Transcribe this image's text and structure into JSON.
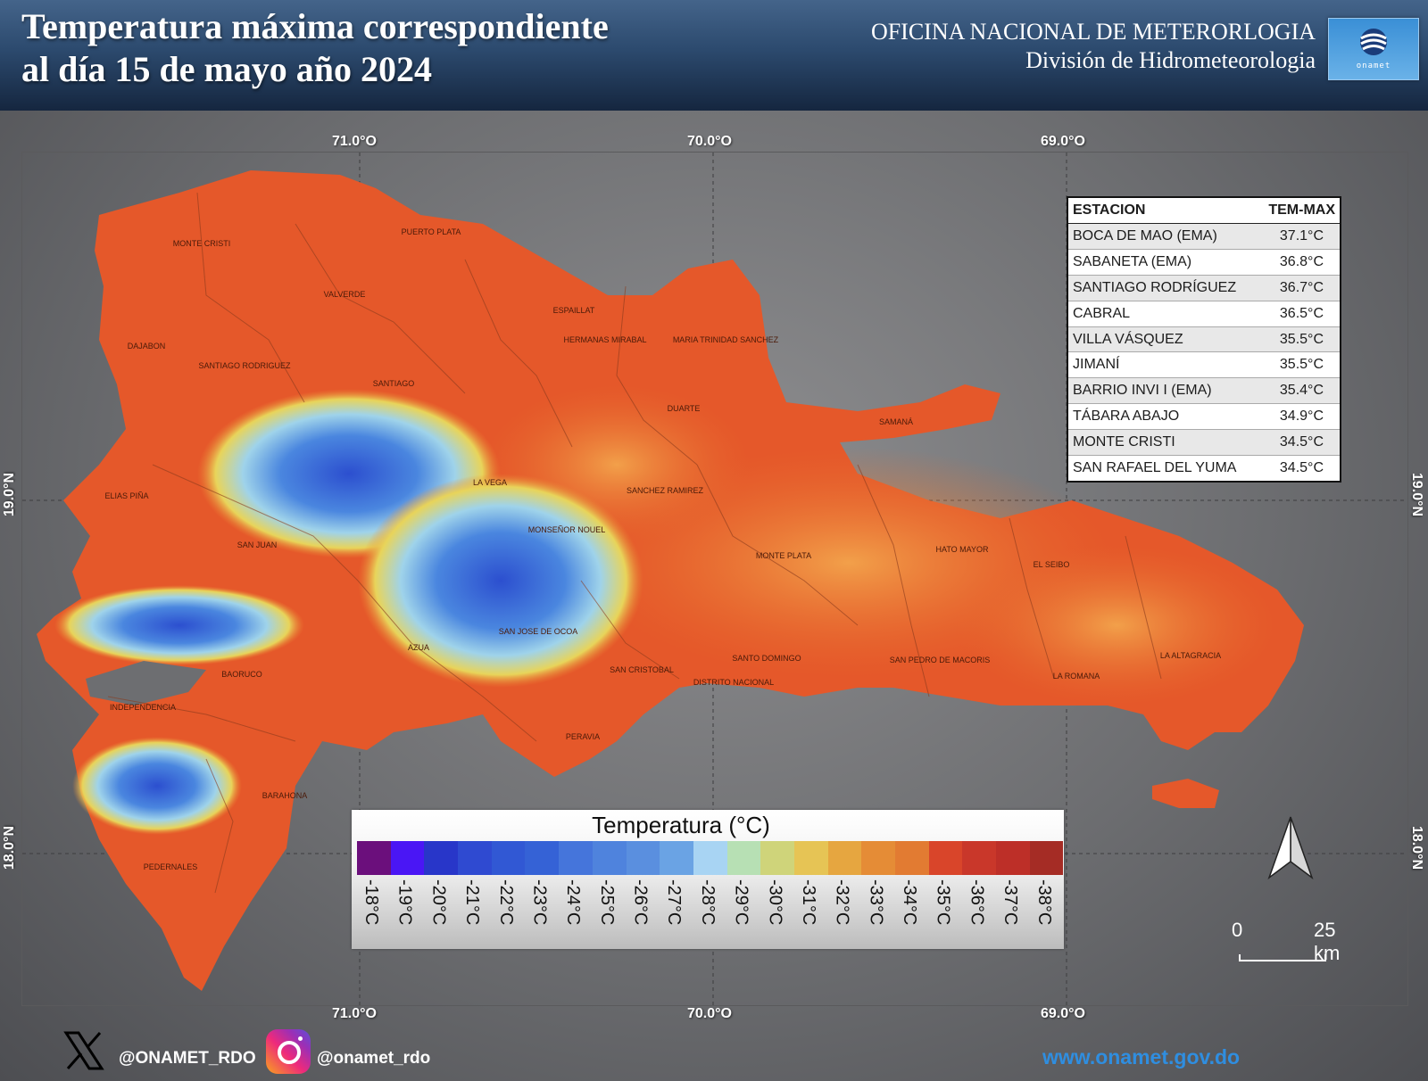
{
  "header": {
    "title_line1": "Temperatura máxima correspondiente",
    "title_line2": "al día 15 de mayo  año 2024",
    "org_line1": "OFICINA NACIONAL DE METERORLOGIA",
    "org_line2": "División de Hidrometeorologia",
    "logo_text": "onamet"
  },
  "map": {
    "longitude_labels": [
      "71.0°O",
      "70.0°O",
      "69.0°O"
    ],
    "latitude_labels": [
      "19.0°N",
      "18.0°N"
    ],
    "provinces": [
      "MONTE CRISTI",
      "PUERTO PLATA",
      "VALVERDE",
      "ESPAILLAT",
      "DAJABON",
      "SANTIAGO RODRIGUEZ",
      "SANTIAGO",
      "HERMANAS MIRABAL",
      "MARIA TRINIDAD SANCHEZ",
      "DUARTE",
      "SAMANÁ",
      "LA VEGA",
      "SANCHEZ RAMIREZ",
      "ELIAS PIÑA",
      "MONSEÑOR NOUEL",
      "SAN JUAN",
      "MONTE PLATA",
      "HATO MAYOR",
      "EL SEIBO",
      "SAN JOSE DE OCOA",
      "AZUA",
      "SAN CRISTOBAL",
      "SANTO DOMINGO",
      "DISTRITO NACIONAL",
      "SAN PEDRO DE MACORIS",
      "LA ROMANA",
      "LA ALTAGRACIA",
      "BAORUCO",
      "INDEPENDENCIA",
      "PERAVIA",
      "BARAHONA",
      "PEDERNALES"
    ]
  },
  "stations": {
    "header_station": "ESTACION",
    "header_temp": "TEM-MAX",
    "rows": [
      {
        "name": "BOCA DE MAO (EMA)",
        "temp": "37.1°C"
      },
      {
        "name": "SABANETA (EMA)",
        "temp": "36.8°C"
      },
      {
        "name": "SANTIAGO RODRÍGUEZ",
        "temp": "36.7°C"
      },
      {
        "name": "CABRAL",
        "temp": "36.5°C"
      },
      {
        "name": "VILLA VÁSQUEZ",
        "temp": "35.5°C"
      },
      {
        "name": "JIMANÍ",
        "temp": "35.5°C"
      },
      {
        "name": "BARRIO INVI I (EMA)",
        "temp": "35.4°C"
      },
      {
        "name": "TÁBARA ABAJO",
        "temp": "34.9°C"
      },
      {
        "name": "MONTE CRISTI",
        "temp": "34.5°C"
      },
      {
        "name": "SAN RAFAEL DEL YUMA",
        "temp": "34.5°C"
      }
    ]
  },
  "legend": {
    "title": "Temperatura (°C)",
    "colors": [
      "#6b0f7c",
      "#4a16f5",
      "#2836c9",
      "#2f4ad1",
      "#3158d4",
      "#3562d6",
      "#4575db",
      "#4f83dd",
      "#5a8fdf",
      "#6aa3e4",
      "#a8d4f3",
      "#b7e0b4",
      "#cfd47a",
      "#e6c455",
      "#e6a640",
      "#e58c36",
      "#e27b32",
      "#d9452a",
      "#c9372a",
      "#bd2f28",
      "#a52c25"
    ],
    "labels": [
      "-18°C",
      "-19°C",
      "-20°C",
      "-21°C",
      "-22°C",
      "-23°C",
      "-24°C",
      "-25°C",
      "-26°C",
      "-27°C",
      "-28°C",
      "-29°C",
      "-30°C",
      "-31°C",
      "-32°C",
      "-33°C",
      "-34°C",
      "-35°C",
      "-36°C",
      "-37°C",
      "-38°C"
    ]
  },
  "scale": {
    "start": "0",
    "end": "25 km"
  },
  "footer": {
    "x_handle": "@ONAMET_RDO",
    "ig_handle": "@onamet_rdo",
    "website": "www.onamet.gov.do"
  },
  "icons": {
    "north_arrow": "north-arrow-icon",
    "x_logo": "x-logo-icon",
    "instagram": "instagram-icon"
  }
}
